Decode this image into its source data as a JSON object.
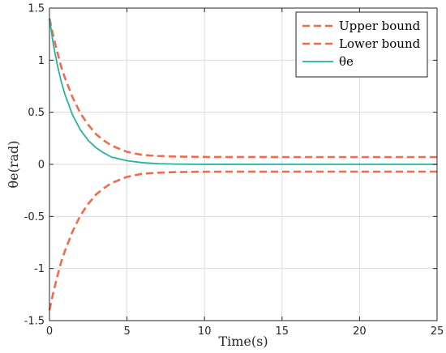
{
  "chart_data": {
    "type": "line",
    "xlabel": "Time(s)",
    "ylabel": "θe(rad)",
    "xlim": [
      0,
      25
    ],
    "ylim": [
      -1.5,
      1.5
    ],
    "xticks": [
      "0",
      "5",
      "10",
      "15",
      "20",
      "25"
    ],
    "yticks": [
      "1.5",
      "1",
      "0.5",
      "0",
      "-0.5",
      "-1",
      "-1.5"
    ],
    "grid": true,
    "legend_position": "top-right",
    "colors": {
      "bound": "#f26b4b",
      "theta": "#26b3a0"
    },
    "series": [
      {
        "name": "Upper bound",
        "style": "dashed",
        "x": [
          0,
          0.25,
          0.5,
          0.75,
          1,
          1.5,
          2,
          2.5,
          3,
          3.5,
          4,
          5,
          6,
          7,
          8,
          10,
          15,
          20,
          25
        ],
        "y": [
          1.4,
          1.23,
          1.08,
          0.94,
          0.83,
          0.64,
          0.49,
          0.38,
          0.29,
          0.23,
          0.18,
          0.12,
          0.09,
          0.08,
          0.075,
          0.071,
          0.07,
          0.07,
          0.07
        ]
      },
      {
        "name": "Lower bound",
        "style": "dashed",
        "x": [
          0,
          0.25,
          0.5,
          0.75,
          1,
          1.5,
          2,
          2.5,
          3,
          3.5,
          4,
          5,
          6,
          7,
          8,
          10,
          15,
          20,
          25
        ],
        "y": [
          -1.4,
          -1.23,
          -1.08,
          -0.94,
          -0.83,
          -0.64,
          -0.49,
          -0.38,
          -0.29,
          -0.23,
          -0.18,
          -0.12,
          -0.09,
          -0.08,
          -0.075,
          -0.071,
          -0.07,
          -0.07,
          -0.07
        ]
      },
      {
        "name": "θe",
        "style": "solid",
        "x": [
          0,
          0.25,
          0.5,
          0.75,
          1,
          1.5,
          2,
          2.5,
          3,
          3.5,
          4,
          5,
          6,
          7,
          8,
          10,
          15,
          20,
          25
        ],
        "y": [
          1.4,
          1.15,
          0.96,
          0.8,
          0.67,
          0.47,
          0.33,
          0.23,
          0.16,
          0.11,
          0.07,
          0.035,
          0.016,
          0.007,
          0.003,
          0.0005,
          0,
          0,
          0
        ]
      }
    ]
  }
}
